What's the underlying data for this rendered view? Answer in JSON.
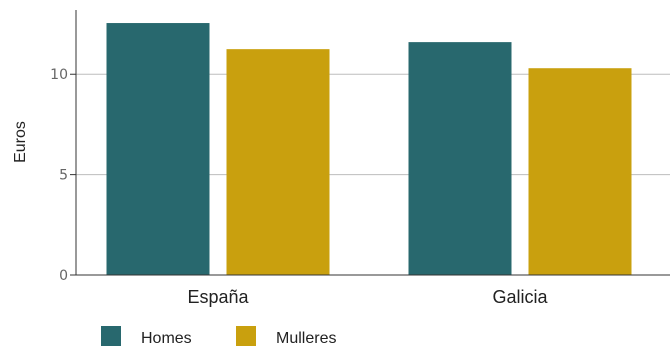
{
  "chart_data": {
    "type": "bar",
    "categories": [
      "España",
      "Galicia"
    ],
    "series": [
      {
        "name": "Homes",
        "values": [
          12.55,
          11.6
        ],
        "color": "#28686e"
      },
      {
        "name": "Mulleres",
        "values": [
          11.25,
          10.3
        ],
        "color": "#c9a00e"
      }
    ],
    "ylabel": "Euros",
    "xlabel": "",
    "ylim": [
      0,
      13.2
    ],
    "yticks": [
      "0",
      "5",
      "10"
    ],
    "grid": true,
    "legend_position": "bottom-left"
  }
}
